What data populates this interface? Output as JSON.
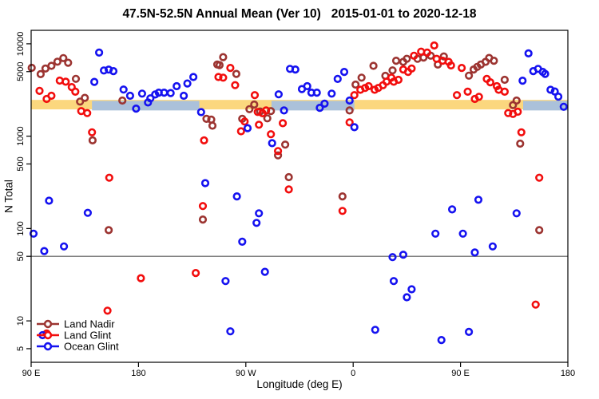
{
  "title": "47.5N-52.5N Annual Mean (Ver 10)   2015-01-01 to 2020-12-18",
  "chart_data": {
    "type": "scatter",
    "title": "47.5N-52.5N Annual Mean (Ver 10)   2015-01-01 to 2020-12-18",
    "xlabel": "Longitude (deg E)",
    "ylabel": "N Total",
    "grid": false,
    "x_axis": {
      "lim": [
        90,
        540
      ],
      "ticks": [
        {
          "pos": 90,
          "label": "90 E"
        },
        {
          "pos": 180,
          "label": "180"
        },
        {
          "pos": 270,
          "label": "90 W"
        },
        {
          "pos": 360,
          "label": "0"
        },
        {
          "pos": 450,
          "label": "90 E"
        },
        {
          "pos": 540,
          "label": "180"
        }
      ]
    },
    "y_axis": {
      "scale": "log",
      "lim": [
        3.56,
        14000
      ],
      "ticks": [
        {
          "pos": 10000,
          "label": "10000"
        },
        {
          "pos": 5000,
          "label": "5000"
        },
        {
          "pos": 1000,
          "label": "1000"
        },
        {
          "pos": 500,
          "label": "500"
        },
        {
          "pos": 100,
          "label": "100"
        },
        {
          "pos": 50,
          "label": "50"
        },
        {
          "pos": 10,
          "label": "10"
        },
        {
          "pos": 5,
          "label": "5"
        }
      ]
    },
    "reference_line": {
      "value": 50,
      "color": "#808080"
    },
    "bands": [
      {
        "name": "land-mean-band",
        "color": "#fbd77e",
        "value_range": [
          1950,
          2470
        ],
        "lon_segments": [
          [
            90,
            540
          ]
        ]
      },
      {
        "name": "ocean-mean-band",
        "color": "#abc1da",
        "value_range": [
          1900,
          2410
        ],
        "lon_segments": [
          [
            141,
            231
          ],
          [
            291.5,
            361
          ],
          [
            502.5,
            540
          ]
        ]
      }
    ],
    "legend": {
      "position": "bottom-left",
      "entries": [
        "Land Nadir",
        "Land Glint",
        "Ocean Glint"
      ]
    },
    "series": [
      {
        "name": "Land Nadir",
        "color": "#9c3431",
        "points": [
          [
            90.5,
            5500
          ],
          [
            98,
            4700
          ],
          [
            102,
            5400
          ],
          [
            107,
            5770
          ],
          [
            112,
            6400
          ],
          [
            117,
            7000
          ],
          [
            121,
            6240
          ],
          [
            127.5,
            4180
          ],
          [
            131,
            2370
          ],
          [
            135,
            2600
          ],
          [
            141.5,
            900
          ],
          [
            155,
            96
          ],
          [
            166.5,
            2430
          ],
          [
            234,
            125
          ],
          [
            237,
            1540
          ],
          [
            241,
            1510
          ],
          [
            242,
            1300
          ],
          [
            246,
            5970
          ],
          [
            248,
            5880
          ],
          [
            251,
            7180
          ],
          [
            262,
            4720
          ],
          [
            267,
            1540
          ],
          [
            273,
            1960
          ],
          [
            277,
            2200
          ],
          [
            282,
            1850
          ],
          [
            288,
            1560
          ],
          [
            291,
            1870
          ],
          [
            297,
            620
          ],
          [
            303,
            810
          ],
          [
            306,
            360
          ],
          [
            351,
            223
          ],
          [
            357,
            1900
          ],
          [
            362,
            3620
          ],
          [
            367,
            4300
          ],
          [
            377,
            5770
          ],
          [
            387,
            4500
          ],
          [
            393,
            5160
          ],
          [
            396,
            6560
          ],
          [
            402,
            6380
          ],
          [
            405,
            6880
          ],
          [
            414,
            6880
          ],
          [
            419,
            7100
          ],
          [
            425,
            7430
          ],
          [
            431,
            5960
          ],
          [
            436,
            7300
          ],
          [
            457,
            4520
          ],
          [
            461,
            5270
          ],
          [
            464,
            5630
          ],
          [
            467,
            5960
          ],
          [
            471,
            6380
          ],
          [
            474,
            7030
          ],
          [
            478,
            6560
          ],
          [
            487,
            4080
          ],
          [
            494,
            2170
          ],
          [
            497,
            2430
          ],
          [
            500,
            830
          ],
          [
            516,
            96
          ]
        ]
      },
      {
        "name": "Land Glint",
        "color": "#f20d0d",
        "points": [
          [
            97,
            3090
          ],
          [
            103,
            2530
          ],
          [
            103,
            7.3
          ],
          [
            107,
            2740
          ],
          [
            114,
            4000
          ],
          [
            119,
            3890
          ],
          [
            124,
            3400
          ],
          [
            127,
            3030
          ],
          [
            132,
            1870
          ],
          [
            137,
            1780
          ],
          [
            141,
            1100
          ],
          [
            154,
            12.9
          ],
          [
            155.5,
            355
          ],
          [
            182,
            29
          ],
          [
            228,
            33
          ],
          [
            234,
            175
          ],
          [
            235,
            900
          ],
          [
            247,
            4370
          ],
          [
            251,
            4300
          ],
          [
            257,
            5480
          ],
          [
            261,
            3570
          ],
          [
            266,
            1130
          ],
          [
            269,
            1440
          ],
          [
            277.5,
            2780
          ],
          [
            280,
            1830
          ],
          [
            281,
            1330
          ],
          [
            284,
            1770
          ],
          [
            287,
            1900
          ],
          [
            291,
            1050
          ],
          [
            297,
            690
          ],
          [
            301,
            1380
          ],
          [
            306,
            265
          ],
          [
            351,
            155
          ],
          [
            357,
            1410
          ],
          [
            361,
            2780
          ],
          [
            366,
            3180
          ],
          [
            370,
            3330
          ],
          [
            373,
            3480
          ],
          [
            378,
            3180
          ],
          [
            381,
            3330
          ],
          [
            385,
            3560
          ],
          [
            388,
            3890
          ],
          [
            392,
            4300
          ],
          [
            394,
            3890
          ],
          [
            398,
            4080
          ],
          [
            402,
            5270
          ],
          [
            406,
            4970
          ],
          [
            409,
            5400
          ],
          [
            411,
            7430
          ],
          [
            417,
            8230
          ],
          [
            422,
            8040
          ],
          [
            428,
            9600
          ],
          [
            430,
            6880
          ],
          [
            435,
            6560
          ],
          [
            440,
            6380
          ],
          [
            442,
            5830
          ],
          [
            447,
            2780
          ],
          [
            451,
            5480
          ],
          [
            456,
            3030
          ],
          [
            462,
            2530
          ],
          [
            465.5,
            2670
          ],
          [
            472,
            4170
          ],
          [
            475,
            3830
          ],
          [
            480.5,
            3480
          ],
          [
            482,
            3180
          ],
          [
            487,
            3030
          ],
          [
            490,
            1780
          ],
          [
            494,
            1740
          ],
          [
            498,
            1840
          ],
          [
            501,
            1100
          ],
          [
            513,
            15
          ],
          [
            516,
            355
          ]
        ]
      },
      {
        "name": "Ocean Glint",
        "color": "#1512f0",
        "points": [
          [
            92,
            88
          ],
          [
            99.6,
            7
          ],
          [
            101,
            57
          ],
          [
            105,
            200
          ],
          [
            117.5,
            64
          ],
          [
            137.5,
            148
          ],
          [
            143,
            3870
          ],
          [
            147,
            8030
          ],
          [
            151,
            5150
          ],
          [
            155,
            5260
          ],
          [
            159,
            5060
          ],
          [
            167.5,
            3200
          ],
          [
            173,
            2740
          ],
          [
            178,
            1990
          ],
          [
            183,
            2890
          ],
          [
            188,
            2315
          ],
          [
            190,
            2570
          ],
          [
            194,
            2830
          ],
          [
            197,
            2960
          ],
          [
            201.5,
            2960
          ],
          [
            207,
            2930
          ],
          [
            212,
            3480
          ],
          [
            218,
            2740
          ],
          [
            221,
            3720
          ],
          [
            226,
            4370
          ],
          [
            232.5,
            1820
          ],
          [
            236,
            310
          ],
          [
            253,
            27
          ],
          [
            257,
            7.7
          ],
          [
            262.5,
            223
          ],
          [
            267,
            72
          ],
          [
            271.5,
            1220
          ],
          [
            279,
            115
          ],
          [
            281,
            146
          ],
          [
            286,
            34
          ],
          [
            292,
            840
          ],
          [
            297.5,
            2840
          ],
          [
            302,
            1900
          ],
          [
            307,
            5350
          ],
          [
            311.5,
            5270
          ],
          [
            317,
            3240
          ],
          [
            321.5,
            3480
          ],
          [
            325,
            2960
          ],
          [
            329.5,
            2960
          ],
          [
            332,
            2030
          ],
          [
            336,
            2250
          ],
          [
            342,
            2890
          ],
          [
            347,
            4170
          ],
          [
            352.5,
            4970
          ],
          [
            357,
            2430
          ],
          [
            361,
            1250
          ],
          [
            378.5,
            8
          ],
          [
            393,
            49
          ],
          [
            394,
            27
          ],
          [
            402,
            52
          ],
          [
            405,
            18
          ],
          [
            409,
            22
          ],
          [
            429,
            88
          ],
          [
            434,
            6.2
          ],
          [
            443,
            161
          ],
          [
            452,
            88
          ],
          [
            457,
            7.6
          ],
          [
            462,
            55
          ],
          [
            465,
            205
          ],
          [
            477,
            64
          ],
          [
            497,
            146
          ],
          [
            502,
            3990
          ],
          [
            507,
            7880
          ],
          [
            511,
            5060
          ],
          [
            515,
            5350
          ],
          [
            519,
            4970
          ],
          [
            521,
            4720
          ],
          [
            525.5,
            3180
          ],
          [
            529,
            3050
          ],
          [
            532,
            2680
          ],
          [
            536.5,
            2080
          ]
        ]
      }
    ]
  }
}
